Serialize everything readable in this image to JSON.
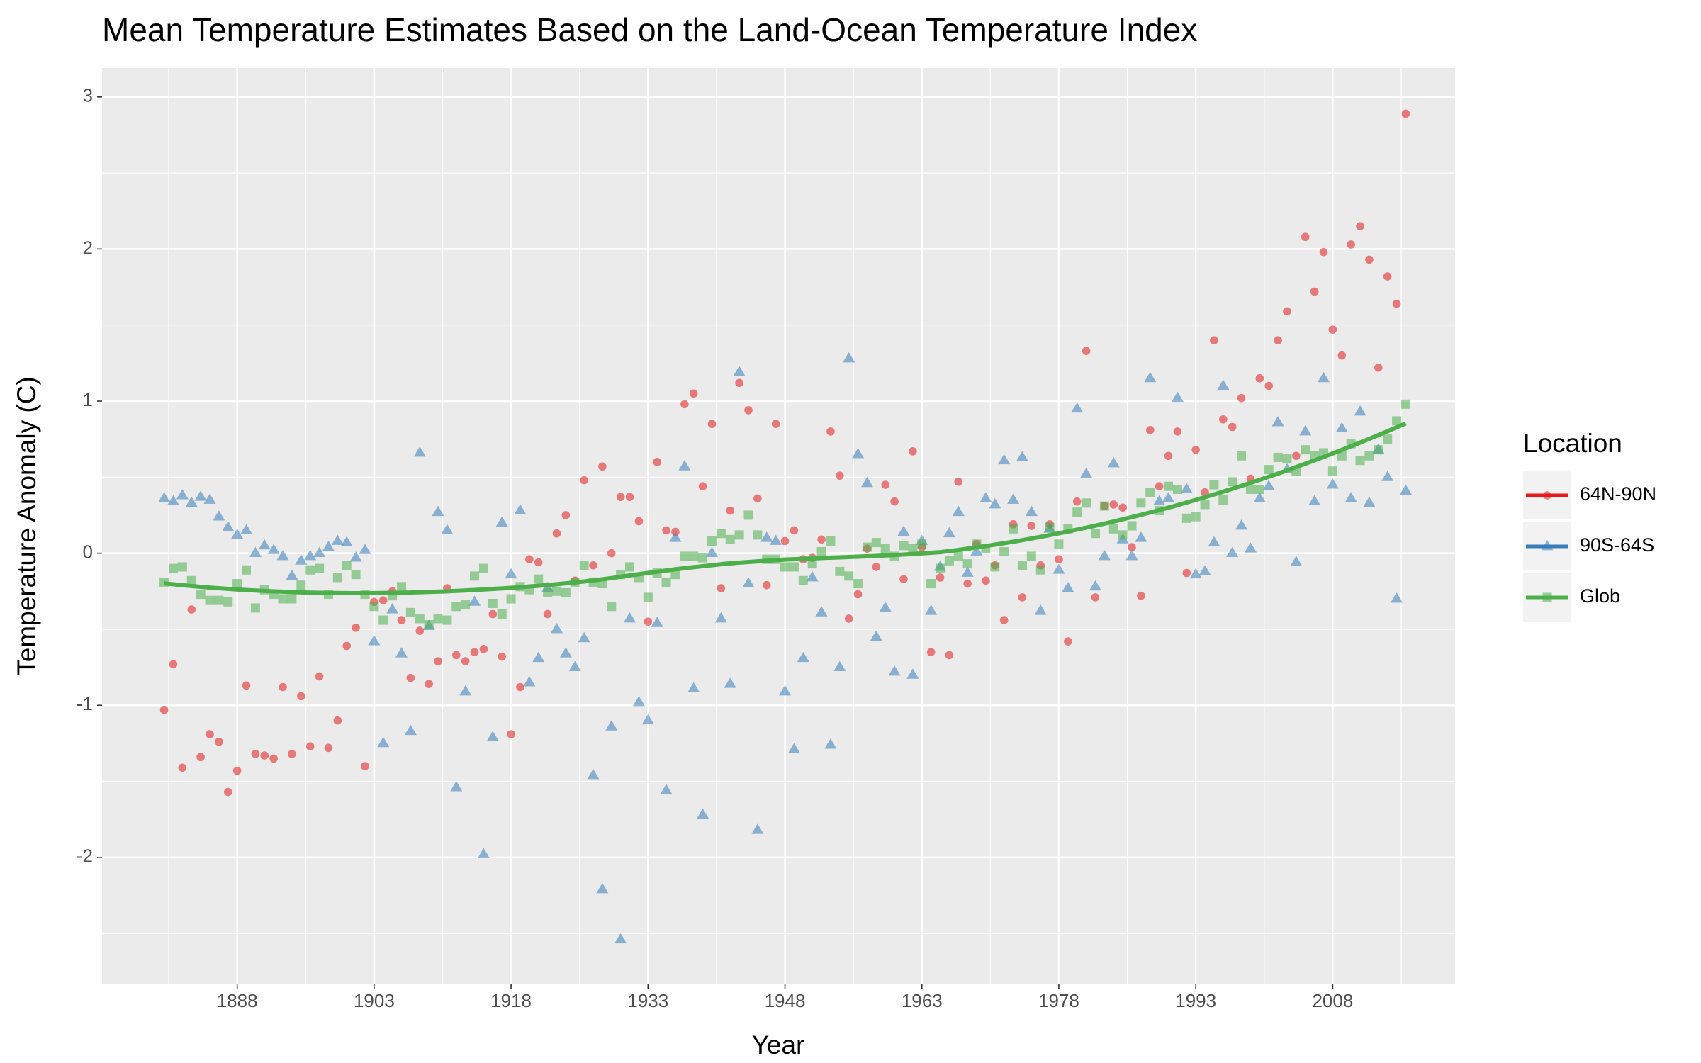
{
  "chart_data": {
    "type": "scatter",
    "title": "Mean Temperature Estimates Based on the Land-Ocean Temperature Index",
    "x_label": "Year",
    "y_label": "Temperature Anomaly (C)",
    "legend_title": "Location",
    "legend": "right",
    "grid": true,
    "smooth_series": "Glob",
    "xlim": [
      1873.2,
      2021.4
    ],
    "ylim": [
      -2.83,
      3.19
    ],
    "xticks": [
      1888,
      1903,
      1918,
      1933,
      1948,
      1963,
      1978,
      1993,
      2008
    ],
    "yticks": [
      -2,
      -1,
      0,
      1,
      2,
      3
    ],
    "x": [
      1880,
      1881,
      1882,
      1883,
      1884,
      1885,
      1886,
      1887,
      1888,
      1889,
      1890,
      1891,
      1892,
      1893,
      1894,
      1895,
      1896,
      1897,
      1898,
      1899,
      1900,
      1901,
      1902,
      1903,
      1904,
      1905,
      1906,
      1907,
      1908,
      1909,
      1910,
      1911,
      1912,
      1913,
      1914,
      1915,
      1916,
      1917,
      1918,
      1919,
      1920,
      1921,
      1922,
      1923,
      1924,
      1925,
      1926,
      1927,
      1928,
      1929,
      1930,
      1931,
      1932,
      1933,
      1934,
      1935,
      1936,
      1937,
      1938,
      1939,
      1940,
      1941,
      1942,
      1943,
      1944,
      1945,
      1946,
      1947,
      1948,
      1949,
      1950,
      1951,
      1952,
      1953,
      1954,
      1955,
      1956,
      1957,
      1958,
      1959,
      1960,
      1961,
      1962,
      1963,
      1964,
      1965,
      1966,
      1967,
      1968,
      1969,
      1970,
      1971,
      1972,
      1973,
      1974,
      1975,
      1976,
      1977,
      1978,
      1979,
      1980,
      1981,
      1982,
      1983,
      1984,
      1985,
      1986,
      1987,
      1988,
      1989,
      1990,
      1991,
      1992,
      1993,
      1994,
      1995,
      1996,
      1997,
      1998,
      1999,
      2000,
      2001,
      2002,
      2003,
      2004,
      2005,
      2006,
      2007,
      2008,
      2009,
      2010,
      2011,
      2012,
      2013,
      2014,
      2015,
      2016
    ],
    "series": [
      {
        "name": "64N-90N",
        "color": "#E41A1C",
        "marker": "circle",
        "values": [
          -1.03,
          -0.73,
          -1.41,
          -0.37,
          -1.34,
          -1.19,
          -1.24,
          -1.57,
          -1.43,
          -0.87,
          -1.32,
          -1.33,
          -1.35,
          -0.88,
          -1.32,
          -0.94,
          -1.27,
          -0.81,
          -1.28,
          -1.1,
          -0.61,
          -0.49,
          -1.4,
          -0.32,
          -0.31,
          -0.25,
          -0.44,
          -0.82,
          -0.51,
          -0.86,
          -0.71,
          -0.23,
          -0.67,
          -0.71,
          -0.65,
          -0.63,
          -0.4,
          -0.68,
          -1.19,
          -0.88,
          -0.04,
          -0.06,
          -0.4,
          0.13,
          0.25,
          -0.18,
          0.48,
          -0.08,
          0.57,
          0.0,
          0.37,
          0.37,
          0.21,
          -0.45,
          0.6,
          0.15,
          0.14,
          0.98,
          1.05,
          0.44,
          0.85,
          -0.23,
          0.28,
          1.12,
          0.94,
          0.36,
          -0.21,
          0.85,
          0.08,
          0.15,
          -0.04,
          -0.03,
          0.09,
          0.8,
          0.51,
          -0.43,
          -0.27,
          0.03,
          -0.09,
          0.45,
          0.34,
          -0.17,
          0.67,
          0.04,
          -0.65,
          -0.16,
          -0.67,
          0.47,
          -0.2,
          0.06,
          -0.18,
          -0.08,
          -0.44,
          0.19,
          -0.29,
          0.18,
          -0.08,
          0.19,
          -0.04,
          -0.58,
          0.34,
          1.33,
          -0.29,
          0.31,
          0.32,
          0.3,
          0.04,
          -0.28,
          0.81,
          0.44,
          0.64,
          0.8,
          -0.13,
          0.68,
          0.4,
          1.4,
          0.88,
          0.83,
          1.02,
          0.49,
          1.15,
          1.1,
          1.4,
          1.59,
          0.64,
          2.08,
          1.72,
          1.98,
          1.47,
          1.3,
          2.03,
          2.15,
          1.93,
          1.22,
          1.82,
          1.64,
          2.89
        ]
      },
      {
        "name": "90S-64S",
        "color": "#377EB8",
        "marker": "triangle",
        "values": [
          0.36,
          0.34,
          0.38,
          0.33,
          0.37,
          0.35,
          0.24,
          0.17,
          0.12,
          0.15,
          0.0,
          0.05,
          0.02,
          -0.02,
          -0.15,
          -0.05,
          -0.02,
          0.0,
          0.04,
          0.08,
          0.07,
          -0.03,
          0.02,
          -0.58,
          -1.25,
          -0.37,
          -0.66,
          -1.17,
          0.66,
          -0.48,
          0.27,
          0.15,
          -1.54,
          -0.91,
          -0.32,
          -1.98,
          -1.21,
          0.2,
          -0.14,
          0.28,
          -0.85,
          -0.69,
          -0.23,
          -0.5,
          -0.66,
          -0.75,
          -0.56,
          -1.46,
          -2.21,
          -1.14,
          -2.54,
          -0.43,
          -0.98,
          -1.1,
          -0.46,
          -1.56,
          0.1,
          0.57,
          -0.89,
          -1.72,
          0.0,
          -0.43,
          -0.86,
          1.19,
          -0.2,
          -1.82,
          0.1,
          0.08,
          -0.91,
          -1.29,
          -0.69,
          -0.16,
          -0.39,
          -1.26,
          -0.75,
          1.28,
          0.65,
          0.46,
          -0.55,
          -0.36,
          -0.78,
          0.14,
          -0.8,
          0.08,
          -0.38,
          -0.09,
          0.13,
          0.27,
          -0.13,
          0.01,
          0.36,
          0.32,
          0.61,
          0.35,
          0.63,
          0.27,
          -0.38,
          0.16,
          -0.11,
          -0.23,
          0.95,
          0.52,
          -0.22,
          -0.02,
          0.59,
          0.09,
          -0.02,
          0.1,
          1.15,
          0.34,
          0.36,
          1.02,
          0.42,
          -0.14,
          -0.12,
          0.07,
          1.1,
          0.0,
          0.18,
          0.03,
          0.36,
          0.44,
          0.86,
          0.55,
          -0.06,
          0.8,
          0.34,
          1.15,
          0.45,
          0.82,
          0.36,
          0.93,
          0.33,
          0.68,
          0.5,
          -0.3,
          0.41
        ]
      },
      {
        "name": "Glob",
        "color": "#4DAF4A",
        "marker": "square",
        "values": [
          -0.19,
          -0.1,
          -0.09,
          -0.18,
          -0.27,
          -0.31,
          -0.31,
          -0.32,
          -0.2,
          -0.11,
          -0.36,
          -0.24,
          -0.27,
          -0.3,
          -0.3,
          -0.21,
          -0.11,
          -0.1,
          -0.27,
          -0.16,
          -0.08,
          -0.14,
          -0.27,
          -0.35,
          -0.44,
          -0.28,
          -0.22,
          -0.39,
          -0.43,
          -0.47,
          -0.43,
          -0.44,
          -0.35,
          -0.34,
          -0.15,
          -0.1,
          -0.33,
          -0.4,
          -0.3,
          -0.22,
          -0.24,
          -0.17,
          -0.26,
          -0.25,
          -0.26,
          -0.19,
          -0.08,
          -0.19,
          -0.2,
          -0.35,
          -0.14,
          -0.09,
          -0.16,
          -0.29,
          -0.13,
          -0.19,
          -0.14,
          -0.02,
          -0.02,
          -0.03,
          0.08,
          0.13,
          0.09,
          0.12,
          0.25,
          0.12,
          -0.04,
          -0.04,
          -0.09,
          -0.09,
          -0.18,
          -0.07,
          0.01,
          0.08,
          -0.12,
          -0.15,
          -0.2,
          0.04,
          0.07,
          0.03,
          -0.02,
          0.05,
          0.03,
          0.06,
          -0.2,
          -0.1,
          -0.05,
          -0.02,
          -0.07,
          0.06,
          0.03,
          -0.09,
          0.01,
          0.16,
          -0.08,
          -0.02,
          -0.11,
          0.17,
          0.06,
          0.16,
          0.27,
          0.33,
          0.13,
          0.31,
          0.16,
          0.12,
          0.18,
          0.33,
          0.4,
          0.28,
          0.44,
          0.42,
          0.23,
          0.24,
          0.32,
          0.45,
          0.35,
          0.47,
          0.64,
          0.42,
          0.42,
          0.55,
          0.63,
          0.62,
          0.54,
          0.68,
          0.64,
          0.66,
          0.54,
          0.64,
          0.72,
          0.61,
          0.64,
          0.68,
          0.75,
          0.87,
          0.98
        ]
      }
    ]
  }
}
